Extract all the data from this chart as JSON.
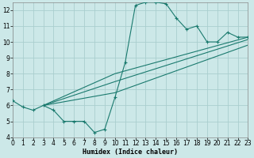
{
  "xlabel": "Humidex (Indice chaleur)",
  "bg_color": "#cce8e8",
  "grid_color": "#aacece",
  "line_color": "#1a7a6e",
  "xlim": [
    0,
    23
  ],
  "ylim": [
    4,
    12.5
  ],
  "xticks": [
    0,
    1,
    2,
    3,
    4,
    5,
    6,
    7,
    8,
    9,
    10,
    11,
    12,
    13,
    14,
    15,
    16,
    17,
    18,
    19,
    20,
    21,
    22,
    23
  ],
  "yticks": [
    4,
    5,
    6,
    7,
    8,
    9,
    10,
    11,
    12
  ],
  "curve_x": [
    0,
    1,
    2,
    3,
    4,
    5,
    6,
    7,
    8,
    9,
    10,
    11,
    12,
    13,
    14,
    15,
    16,
    17,
    18,
    19,
    20,
    21,
    22,
    23
  ],
  "curve_y": [
    6.3,
    5.9,
    5.7,
    6.0,
    5.7,
    5.0,
    5.0,
    5.0,
    4.3,
    4.5,
    6.5,
    8.7,
    12.3,
    12.5,
    12.5,
    12.4,
    11.5,
    10.8,
    11.0,
    10.0,
    10.0,
    10.6,
    10.3,
    10.3
  ],
  "line1": {
    "x": [
      3,
      10,
      23
    ],
    "y": [
      6.0,
      8.0,
      10.3
    ]
  },
  "line2": {
    "x": [
      3,
      10,
      23
    ],
    "y": [
      6.0,
      7.5,
      10.15
    ]
  },
  "line3": {
    "x": [
      3,
      10,
      23
    ],
    "y": [
      6.0,
      6.8,
      9.8
    ]
  }
}
